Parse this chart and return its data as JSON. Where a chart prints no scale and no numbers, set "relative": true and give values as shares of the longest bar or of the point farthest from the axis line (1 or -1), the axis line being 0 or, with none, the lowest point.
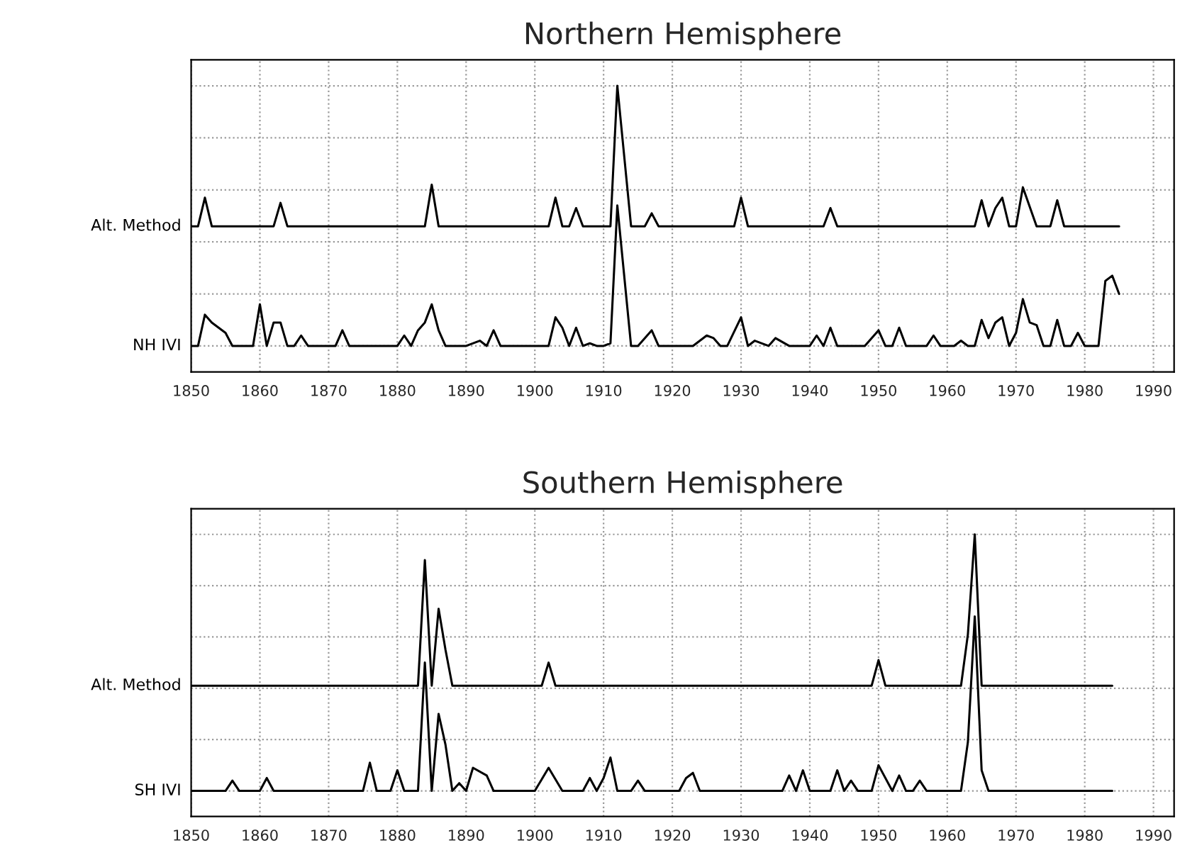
{
  "chart_data": [
    {
      "type": "line",
      "title": "Northern Hemisphere",
      "relative": true,
      "xlim": [
        1850,
        1993
      ],
      "xticks": [
        1850,
        1860,
        1870,
        1880,
        1890,
        1900,
        1910,
        1920,
        1930,
        1940,
        1950,
        1960,
        1970,
        1980,
        1990
      ],
      "grid": true,
      "tick_labels": "x",
      "line_style": "solid",
      "series": [
        {
          "name": "Alt. Method",
          "color": "#000000",
          "x": [
            1850,
            1851,
            1852,
            1853,
            1862,
            1863,
            1864,
            1884,
            1885,
            1886,
            1902,
            1903,
            1904,
            1905,
            1906,
            1907,
            1911,
            1912,
            1914,
            1916,
            1917,
            1918,
            1929,
            1930,
            1931,
            1942,
            1943,
            1944,
            1964,
            1965,
            1966,
            1967,
            1968,
            1969,
            1970,
            1971,
            1973,
            1975,
            1976,
            1977,
            1985
          ],
          "values": [
            0.46,
            0.46,
            0.57,
            0.46,
            0.46,
            0.55,
            0.46,
            0.46,
            0.62,
            0.46,
            0.46,
            0.57,
            0.46,
            0.46,
            0.53,
            0.46,
            0.46,
            1,
            0.46,
            0.46,
            0.51,
            0.46,
            0.46,
            0.57,
            0.46,
            0.46,
            0.53,
            0.46,
            0.46,
            0.56,
            0.46,
            0.53,
            0.57,
            0.46,
            0.46,
            0.61,
            0.46,
            0.46,
            0.56,
            0.46,
            0.46
          ]
        },
        {
          "name": "NH IVI",
          "color": "#000000",
          "x": [
            1850,
            1851,
            1852,
            1853,
            1854,
            1855,
            1856,
            1859,
            1860,
            1861,
            1862,
            1863,
            1864,
            1865,
            1866,
            1867,
            1871,
            1872,
            1873,
            1880,
            1881,
            1882,
            1883,
            1884,
            1885,
            1886,
            1887,
            1890,
            1892,
            1893,
            1894,
            1895,
            1902,
            1903,
            1904,
            1905,
            1906,
            1907,
            1908,
            1909,
            1910,
            1911,
            1912,
            1914,
            1915,
            1917,
            1918,
            1919,
            1923,
            1925,
            1926,
            1927,
            1928,
            1930,
            1931,
            1932,
            1934,
            1935,
            1937,
            1940,
            1941,
            1942,
            1943,
            1944,
            1948,
            1950,
            1951,
            1952,
            1953,
            1954,
            1957,
            1958,
            1959,
            1961,
            1962,
            1963,
            1964,
            1965,
            1966,
            1967,
            1968,
            1969,
            1970,
            1971,
            1972,
            1973,
            1974,
            1975,
            1976,
            1977,
            1978,
            1979,
            1980,
            1982,
            1983,
            1984,
            1985
          ],
          "values": [
            0,
            0,
            0.12,
            0.09,
            0.07,
            0.05,
            0,
            0,
            0.16,
            0,
            0.09,
            0.09,
            0,
            0,
            0.04,
            0,
            0,
            0.06,
            0,
            0,
            0.04,
            0,
            0.06,
            0.09,
            0.16,
            0.06,
            0,
            0,
            0.02,
            0,
            0.06,
            0,
            0,
            0.11,
            0.07,
            0,
            0.07,
            0,
            0.01,
            0,
            0,
            0.01,
            0.54,
            0,
            0,
            0.06,
            0,
            0,
            0,
            0.04,
            0.03,
            0,
            0,
            0.11,
            0,
            0.02,
            0,
            0.03,
            0,
            0,
            0.04,
            0,
            0.07,
            0,
            0,
            0.06,
            0,
            0,
            0.07,
            0,
            0,
            0.04,
            0,
            0,
            0.02,
            0,
            0,
            0.1,
            0.03,
            0.09,
            0.11,
            0,
            0.05,
            0.18,
            0.09,
            0.08,
            0,
            0,
            0.1,
            0,
            0,
            0.05,
            0,
            0,
            0.25,
            0.27,
            0.2
          ]
        }
      ]
    },
    {
      "type": "line",
      "title": "Southern Hemisphere",
      "relative": true,
      "xlim": [
        1850,
        1993
      ],
      "xticks": [
        1850,
        1860,
        1870,
        1880,
        1890,
        1900,
        1910,
        1920,
        1930,
        1940,
        1950,
        1960,
        1970,
        1980,
        1990
      ],
      "grid": true,
      "tick_labels": "x",
      "line_style": "solid",
      "series": [
        {
          "name": "Alt. Method",
          "color": "#000000",
          "x": [
            1850,
            1883,
            1884,
            1885,
            1886,
            1887,
            1888,
            1901,
            1902,
            1903,
            1949,
            1950,
            1951,
            1962,
            1963,
            1964,
            1965,
            1984
          ],
          "values": [
            0.41,
            0.41,
            0.9,
            0.41,
            0.71,
            0.55,
            0.41,
            0.41,
            0.5,
            0.41,
            0.41,
            0.51,
            0.41,
            0.41,
            0.61,
            1,
            0.41,
            0.41
          ]
        },
        {
          "name": "SH IVI",
          "color": "#000000",
          "x": [
            1850,
            1855,
            1856,
            1857,
            1860,
            1861,
            1862,
            1875,
            1876,
            1877,
            1879,
            1880,
            1881,
            1883,
            1884,
            1885,
            1886,
            1887,
            1888,
            1889,
            1890,
            1891,
            1893,
            1894,
            1900,
            1902,
            1904,
            1907,
            1908,
            1909,
            1910,
            1911,
            1912,
            1914,
            1915,
            1916,
            1921,
            1922,
            1923,
            1924,
            1936,
            1937,
            1938,
            1939,
            1940,
            1943,
            1944,
            1945,
            1946,
            1947,
            1949,
            1950,
            1952,
            1953,
            1954,
            1955,
            1956,
            1957,
            1962,
            1963,
            1964,
            1965,
            1966,
            1984
          ],
          "values": [
            0,
            0,
            0.04,
            0,
            0,
            0.05,
            0,
            0,
            0.11,
            0,
            0,
            0.08,
            0,
            0,
            0.5,
            0,
            0.3,
            0.18,
            0,
            0.03,
            0,
            0.09,
            0.06,
            0,
            0,
            0.09,
            0,
            0,
            0.05,
            0,
            0.05,
            0.13,
            0,
            0,
            0.04,
            0,
            0,
            0.05,
            0.07,
            0,
            0,
            0.06,
            0,
            0.08,
            0,
            0,
            0.08,
            0,
            0.04,
            0,
            0,
            0.1,
            0,
            0.06,
            0,
            0,
            0.04,
            0,
            0,
            0.19,
            0.68,
            0.08,
            0,
            0
          ]
        }
      ]
    }
  ]
}
